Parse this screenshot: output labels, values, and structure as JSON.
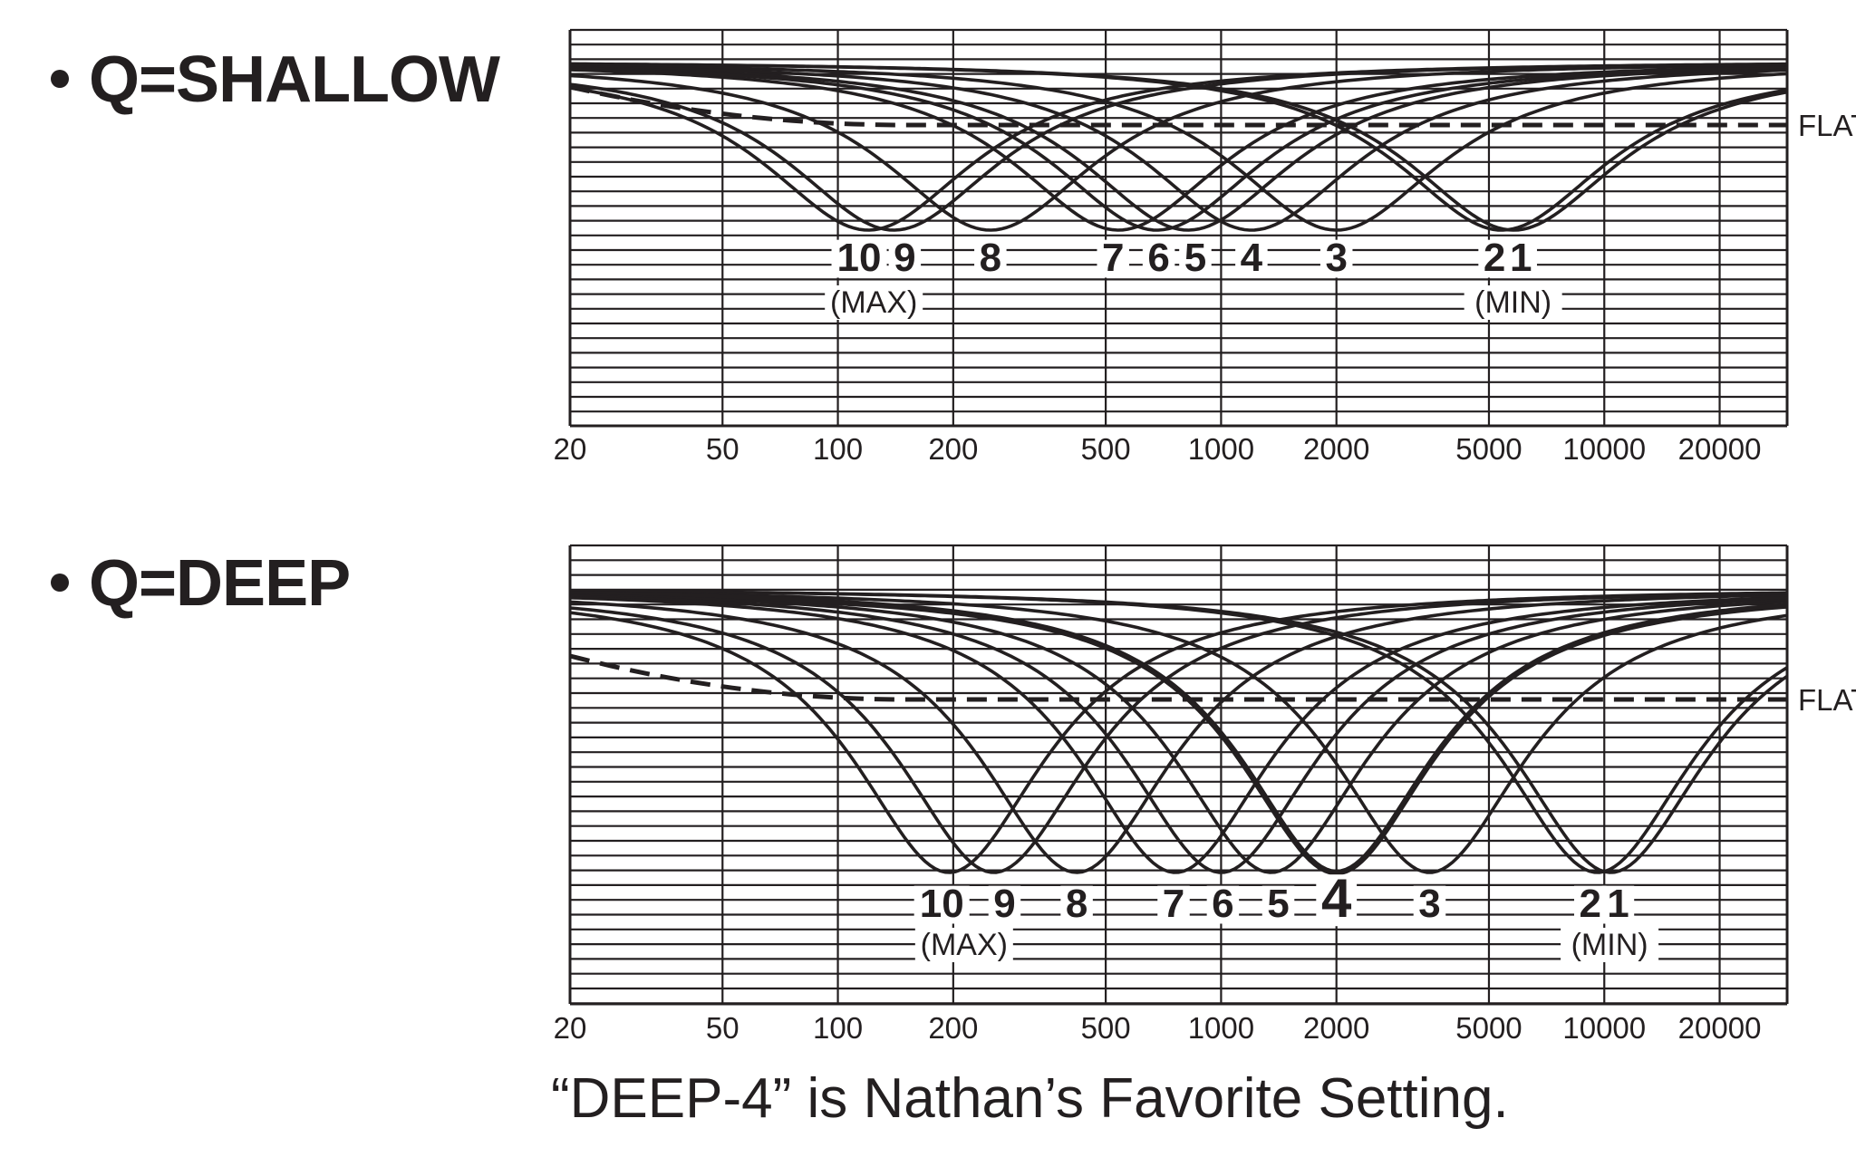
{
  "section_shallow": {
    "bullet": "•",
    "title": "Q=SHALLOW"
  },
  "section_deep": {
    "bullet": "•",
    "title": "Q=DEEP"
  },
  "caption": "“DEEP-4” is Nathan’s Favorite Setting.",
  "colors": {
    "ink": "#231f20",
    "background": "#ffffff"
  },
  "chart_data": [
    {
      "type": "line",
      "title": "Q=SHALLOW",
      "x_scale": "log",
      "xlim": [
        20,
        30000
      ],
      "x_ticks": [
        20,
        50,
        100,
        200,
        500,
        1000,
        2000,
        5000,
        10000,
        20000
      ],
      "x_tick_labels": [
        "20",
        "50",
        "100",
        "200",
        "500",
        "1000",
        "2000",
        "5000",
        "10000",
        "20000"
      ],
      "grid": true,
      "flat_label": "FLAT",
      "series": [
        {
          "label": "1",
          "center_hz": 5800
        },
        {
          "label": "2",
          "center_hz": 5400
        },
        {
          "label": "3",
          "center_hz": 2000
        },
        {
          "label": "4",
          "center_hz": 1200
        },
        {
          "label": "5",
          "center_hz": 820
        },
        {
          "label": "6",
          "center_hz": 680
        },
        {
          "label": "7",
          "center_hz": 540
        },
        {
          "label": "8",
          "center_hz": 250
        },
        {
          "label": "9",
          "center_hz": 140
        },
        {
          "label": "10",
          "center_hz": 120
        }
      ],
      "annotations": {
        "max": "(MAX)",
        "min": "(MIN)"
      }
    },
    {
      "type": "line",
      "title": "Q=DEEP",
      "x_scale": "log",
      "xlim": [
        20,
        30000
      ],
      "x_ticks": [
        20,
        50,
        100,
        200,
        500,
        1000,
        2000,
        5000,
        10000,
        20000
      ],
      "x_tick_labels": [
        "20",
        "50",
        "100",
        "200",
        "500",
        "1000",
        "2000",
        "5000",
        "10000",
        "20000"
      ],
      "grid": true,
      "flat_label": "FLAT",
      "highlight_series": "4",
      "series": [
        {
          "label": "1",
          "center_hz": 10400
        },
        {
          "label": "2",
          "center_hz": 9600
        },
        {
          "label": "3",
          "center_hz": 3500
        },
        {
          "label": "4",
          "center_hz": 2000
        },
        {
          "label": "5",
          "center_hz": 1350
        },
        {
          "label": "6",
          "center_hz": 1000
        },
        {
          "label": "7",
          "center_hz": 760
        },
        {
          "label": "8",
          "center_hz": 420
        },
        {
          "label": "9",
          "center_hz": 255
        },
        {
          "label": "10",
          "center_hz": 195
        }
      ],
      "annotations": {
        "max": "(MAX)",
        "min": "(MIN)"
      }
    }
  ]
}
